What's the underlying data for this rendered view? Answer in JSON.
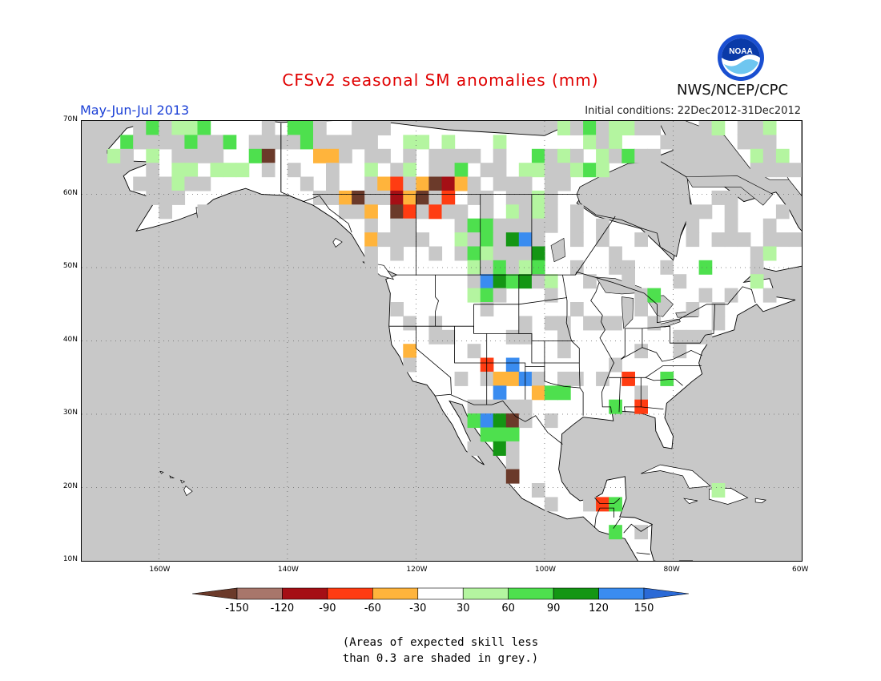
{
  "title": "CFSv2 seasonal SM anomalies (mm)",
  "period": "May-Jun-Jul 2013",
  "initial_conditions": "Initial conditions: 22Dec2012-31Dec2012",
  "agency": "NWS/NCEP/CPC",
  "logo_text": "NOAA",
  "lat_labels": [
    "70N",
    "60N",
    "50N",
    "40N",
    "30N",
    "20N",
    "10N"
  ],
  "lon_labels": [
    "160W",
    "140W",
    "120W",
    "100W",
    "80W",
    "60W"
  ],
  "colorbar": {
    "labels": [
      "-150",
      "-120",
      "-90",
      "-60",
      "-30",
      "30",
      "60",
      "90",
      "120",
      "150"
    ],
    "colors": [
      "#6b3a2a",
      "#a8766b",
      "#a50f15",
      "#ff3c12",
      "#ffb43c",
      "#ffffff",
      "#b4f5a0",
      "#4ee04e",
      "#149614",
      "#3a8cf0",
      "#2b6ad6"
    ]
  },
  "note_line1": "(Areas of expected skill less",
  "note_line2": "than 0.3 are shaded in grey.)",
  "map": {
    "projection": "cylindrical equidistant",
    "lon_range": [
      -172,
      -60
    ],
    "lat_range": [
      10,
      70
    ],
    "ocean_color": "#c8c8c8",
    "land_color": "#ffffff",
    "grey_color": "#c8c8c8"
  }
}
